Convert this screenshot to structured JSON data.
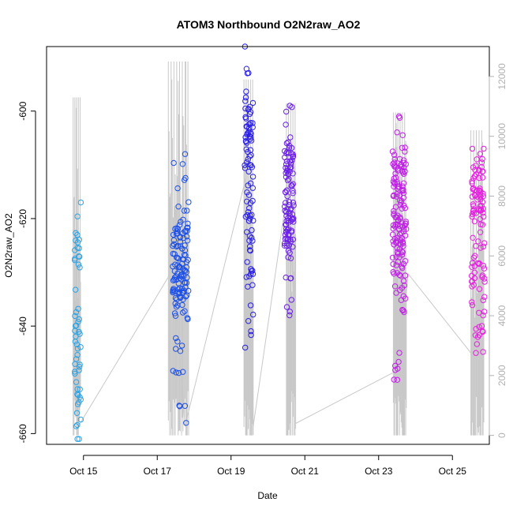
{
  "chart_data": {
    "type": "scatter",
    "title": "ATOM3 Northbound O2N2raw_AO2",
    "xlabel": "Date",
    "ylabel": "O2N2raw_AO2",
    "x_range_days": [
      "2023-10-14T00:00",
      "2023-10-26T00:00"
    ],
    "x_ticks": [
      {
        "date": "2023-10-15",
        "label": "Oct 15"
      },
      {
        "date": "2023-10-17",
        "label": "Oct 17"
      },
      {
        "date": "2023-10-19",
        "label": "Oct 19"
      },
      {
        "date": "2023-10-21",
        "label": "Oct 21"
      },
      {
        "date": "2023-10-23",
        "label": "Oct 23"
      },
      {
        "date": "2023-10-25",
        "label": "Oct 25"
      }
    ],
    "ylim": [
      -662,
      -588
    ],
    "y_ticks": [
      -600,
      -620,
      -640,
      -660
    ],
    "y2_label": "",
    "y2lim": [
      -300,
      13000
    ],
    "y2_ticks": [
      0,
      2000,
      4000,
      6000,
      8000,
      10000,
      12000
    ],
    "grid": false,
    "colors": {
      "g1": "#29a3e6",
      "g2": "#1c4fe6",
      "g3": "#2a1fe6",
      "g4": "#6a1fe6",
      "g5": "#c01fe6",
      "g6": "#e61fe0",
      "secondary_line": "#c8c8c8"
    },
    "groups": [
      {
        "name": "",
        "start": 14.76,
        "end": 14.93,
        "ymin": -661,
        "ymax": -617,
        "n": 55,
        "color_key": "g1",
        "clusters": [
          [
            -640,
            4
          ],
          [
            -655,
            3
          ],
          [
            -625,
            3
          ],
          [
            -648,
            3
          ]
        ]
      },
      {
        "name": "",
        "start": 17.42,
        "end": 17.85,
        "ymin": -658,
        "ymax": -608,
        "n": 130,
        "color_key": "g2",
        "clusters": [
          [
            -628,
            4
          ],
          [
            -634,
            3
          ],
          [
            -622,
            4
          ]
        ]
      },
      {
        "name": "",
        "start": 19.37,
        "end": 19.6,
        "ymin": -644,
        "ymax": -588,
        "n": 95,
        "color_key": "g3",
        "clusters": [
          [
            -608,
            4
          ],
          [
            -602,
            3
          ],
          [
            -620,
            6
          ]
        ]
      },
      {
        "name": "",
        "start": 20.45,
        "end": 20.7,
        "ymin": -638,
        "ymax": -599,
        "n": 110,
        "color_key": "g4",
        "clusters": [
          [
            -610,
            3
          ],
          [
            -617,
            3
          ],
          [
            -623,
            3
          ]
        ]
      },
      {
        "name": "",
        "start": 23.38,
        "end": 23.75,
        "ymin": -650,
        "ymax": -601,
        "n": 150,
        "color_key": "g5",
        "clusters": [
          [
            -620,
            4
          ],
          [
            -627,
            4
          ],
          [
            -612,
            3
          ]
        ]
      },
      {
        "name": "",
        "start": 25.52,
        "end": 25.88,
        "ymin": -645,
        "ymax": -607,
        "n": 110,
        "color_key": "g6",
        "clusters": [
          [
            -618,
            3
          ],
          [
            -612,
            3
          ],
          [
            -630,
            4
          ]
        ]
      }
    ],
    "secondary_series": {
      "name": "",
      "connect_points": [
        [
          14.86,
          300
        ],
        [
          17.45,
          5600
        ],
        [
          17.75,
          300
        ],
        [
          19.4,
          8600
        ],
        [
          19.6,
          300
        ],
        [
          20.6,
          8800
        ],
        [
          20.75,
          400
        ],
        [
          23.55,
          2200
        ],
        [
          23.8,
          5400
        ],
        [
          25.6,
          2600
        ]
      ],
      "spike_groups": [
        {
          "start": 14.72,
          "end": 14.92,
          "max": 11300,
          "n": 18
        },
        {
          "start": 17.3,
          "end": 17.85,
          "max": 12500,
          "n": 30
        },
        {
          "start": 19.35,
          "end": 19.6,
          "max": 11900,
          "n": 18
        },
        {
          "start": 20.5,
          "end": 20.75,
          "max": 11100,
          "n": 18
        },
        {
          "start": 23.4,
          "end": 23.75,
          "max": 10800,
          "n": 24
        },
        {
          "start": 25.5,
          "end": 25.85,
          "max": 10200,
          "n": 20
        }
      ]
    }
  }
}
